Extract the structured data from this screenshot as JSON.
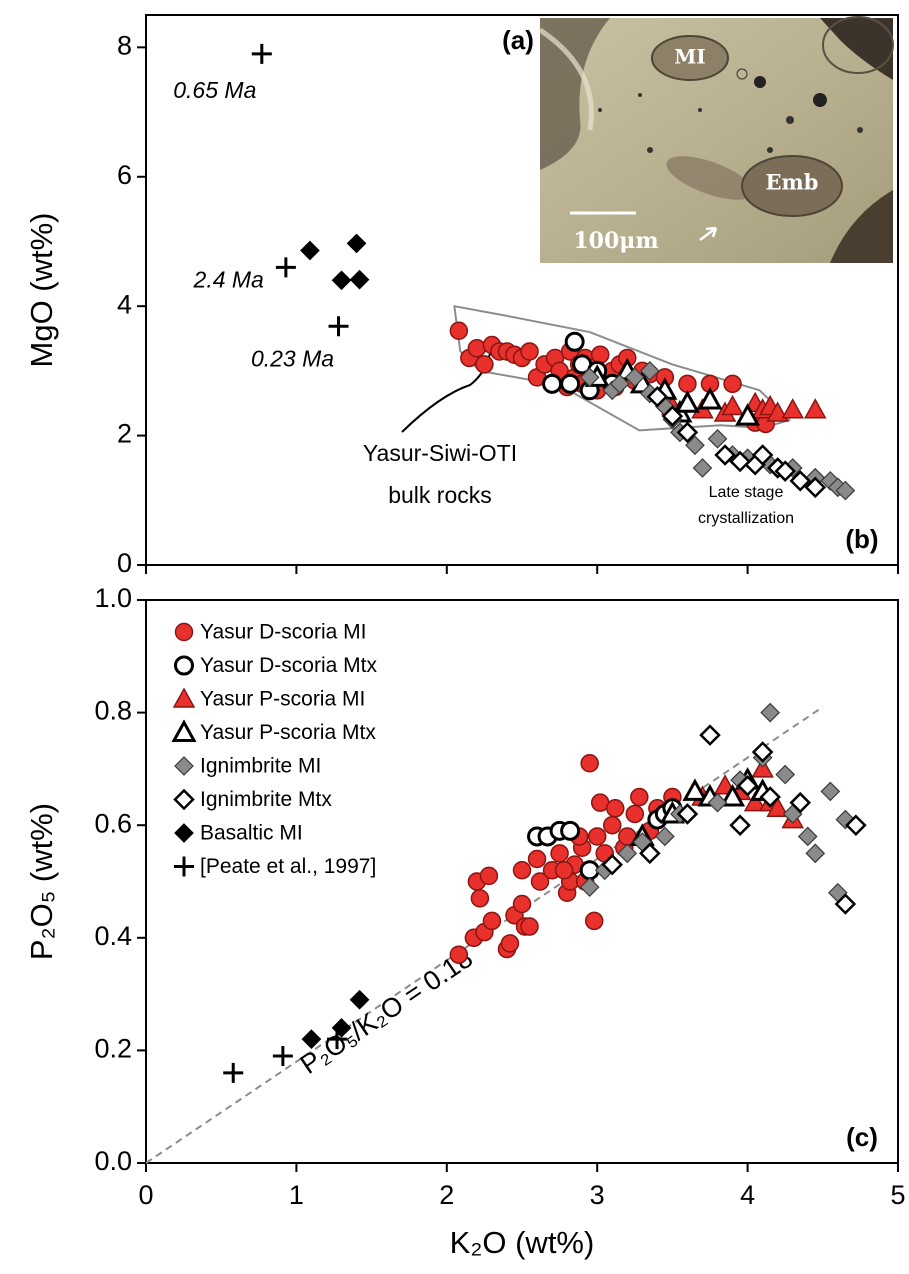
{
  "chart_data": [
    {
      "type": "scatter",
      "ylabel": "MgO (wt%)",
      "panel_label": "(b)",
      "xlim": [
        0,
        5
      ],
      "xticks": [
        0,
        1,
        2,
        3,
        4,
        5
      ],
      "ylim": [
        0,
        8.5
      ],
      "yticks": [
        0,
        2,
        4,
        6,
        8
      ],
      "inset": {
        "label": "(a)",
        "texts": [
          "MI",
          "Emb",
          "100μm"
        ]
      },
      "field": {
        "label": [
          "Yasur-Siwi-OTI",
          "bulk rocks"
        ],
        "color": "#8c8c8c",
        "x": [
          2.05,
          2.4,
          2.95,
          3.5,
          4.08,
          4.28,
          4.1,
          3.82,
          3.28,
          2.75,
          2.22,
          2.09
        ],
        "y": [
          4.0,
          3.85,
          3.6,
          3.1,
          2.7,
          2.24,
          2.12,
          2.16,
          2.08,
          2.78,
          3.0,
          3.3
        ]
      },
      "annotation": [
        "Late stage",
        "crystallization"
      ],
      "series": [
        {
          "marker": "circle",
          "color": "#e8302c",
          "edge": "#8a1512",
          "x": [
            2.08,
            2.15,
            2.2,
            2.25,
            2.3,
            2.35,
            2.4,
            2.45,
            2.5,
            2.55,
            2.6,
            2.65,
            2.7,
            2.72,
            2.75,
            2.8,
            2.82,
            2.85,
            2.88,
            2.9,
            2.92,
            2.95,
            2.98,
            3.0,
            3.02,
            3.05,
            3.1,
            3.12,
            3.15,
            3.2,
            3.25,
            3.3,
            3.35,
            3.45,
            3.6,
            3.75,
            3.9,
            4.05,
            4.12
          ],
          "y": [
            3.62,
            3.2,
            3.35,
            3.1,
            3.4,
            3.3,
            3.3,
            3.25,
            3.2,
            3.3,
            2.9,
            3.1,
            2.8,
            3.2,
            3.0,
            2.75,
            3.3,
            2.9,
            3.1,
            2.8,
            3.2,
            2.95,
            3.05,
            2.7,
            3.25,
            2.9,
            3.0,
            2.75,
            3.1,
            3.2,
            2.85,
            3.0,
            2.95,
            2.9,
            2.8,
            2.8,
            2.8,
            2.2,
            2.18
          ]
        },
        {
          "marker": "circle",
          "color": "#ffffff",
          "edge": "#000000",
          "x": [
            2.7,
            2.82,
            2.85,
            2.9,
            2.95,
            3.0,
            3.1
          ],
          "y": [
            2.8,
            2.8,
            3.45,
            3.1,
            2.7,
            3.0,
            2.8
          ]
        },
        {
          "marker": "triangle",
          "color": "#e8302c",
          "edge": "#8a1512",
          "x": [
            3.5,
            3.7,
            3.85,
            3.9,
            4.0,
            4.05,
            4.1,
            4.15,
            4.2,
            4.3,
            4.45
          ],
          "y": [
            2.45,
            2.4,
            2.35,
            2.45,
            2.3,
            2.5,
            2.4,
            2.45,
            2.35,
            2.4,
            2.4
          ]
        },
        {
          "marker": "triangle",
          "color": "#ffffff",
          "edge": "#000000",
          "x": [
            3.0,
            3.2,
            3.3,
            3.45,
            3.55,
            3.6,
            3.75,
            4.0
          ],
          "y": [
            2.9,
            3.0,
            2.8,
            2.7,
            2.35,
            2.5,
            2.55,
            2.3
          ]
        },
        {
          "marker": "diamond",
          "color": "#8a8a8a",
          "edge": "#3a3a3a",
          "x": [
            2.95,
            3.1,
            3.15,
            3.25,
            3.35,
            3.35,
            3.45,
            3.5,
            3.55,
            3.65,
            3.7,
            3.8,
            3.9,
            4.0,
            4.15,
            4.3,
            4.45,
            4.55,
            4.6,
            4.65
          ],
          "y": [
            2.9,
            2.7,
            2.8,
            2.9,
            3.0,
            2.65,
            2.45,
            2.25,
            2.05,
            1.85,
            1.5,
            1.95,
            1.7,
            1.65,
            1.55,
            1.5,
            1.35,
            1.3,
            1.2,
            1.15
          ]
        },
        {
          "marker": "diamond",
          "color": "#ffffff",
          "edge": "#000000",
          "x": [
            3.4,
            3.5,
            3.6,
            3.85,
            3.95,
            4.05,
            4.1,
            4.2,
            4.25,
            4.35,
            4.45
          ],
          "y": [
            2.6,
            2.3,
            2.05,
            1.7,
            1.6,
            1.55,
            1.7,
            1.5,
            1.45,
            1.3,
            1.2
          ]
        },
        {
          "marker": "diamond",
          "color": "#000000",
          "edge": "#000000",
          "x": [
            1.09,
            1.3,
            1.4,
            1.42
          ],
          "y": [
            4.86,
            4.4,
            4.97,
            4.41
          ]
        },
        {
          "marker": "plus",
          "color": "#000000",
          "x": [
            0.77,
            0.93,
            1.28
          ],
          "y": [
            7.9,
            4.6,
            3.69
          ],
          "point_labels": [
            "0.65 Ma",
            "2.4 Ma",
            "0.23 Ma"
          ]
        }
      ]
    },
    {
      "type": "scatter",
      "xlabel": "K₂O (wt%)",
      "ylabel": "P₂O₅ (wt%)",
      "panel_label": "(c)",
      "legend": "upper left",
      "xlim": [
        0,
        5
      ],
      "xticks": [
        0,
        1,
        2,
        3,
        4,
        5
      ],
      "ylim": [
        0,
        1
      ],
      "yticks": [
        {
          "value": 0,
          "label": "0.0"
        },
        0.2,
        0.4,
        0.6,
        0.8,
        {
          "value": 1,
          "label": "1.0"
        }
      ],
      "reference_line": {
        "slope": 0.18,
        "x": [
          0,
          4.5
        ],
        "label": "P₂O₅/K₂O = 0.18",
        "color": "#8c8c8c"
      },
      "series": [
        {
          "name": "Yasur D-scoria MI",
          "marker": "circle",
          "color": "#e8302c",
          "edge": "#8a1512",
          "x": [
            2.08,
            2.18,
            2.2,
            2.22,
            2.25,
            2.28,
            2.3,
            2.4,
            2.42,
            2.45,
            2.5,
            2.52,
            2.55,
            2.5,
            2.6,
            2.62,
            2.7,
            2.75,
            2.8,
            2.82,
            2.85,
            2.9,
            2.92,
            2.95,
            2.98,
            3.0,
            3.02,
            3.05,
            3.1,
            3.12,
            3.18,
            3.2,
            3.25,
            3.28,
            3.35,
            3.4,
            3.5,
            2.88,
            2.78
          ],
          "y": [
            0.37,
            0.4,
            0.5,
            0.47,
            0.41,
            0.51,
            0.43,
            0.38,
            0.39,
            0.44,
            0.46,
            0.42,
            0.42,
            0.52,
            0.54,
            0.5,
            0.52,
            0.55,
            0.48,
            0.5,
            0.53,
            0.56,
            0.5,
            0.71,
            0.43,
            0.58,
            0.64,
            0.55,
            0.6,
            0.63,
            0.56,
            0.58,
            0.62,
            0.65,
            0.59,
            0.63,
            0.65,
            0.58,
            0.52
          ]
        },
        {
          "name": "Yasur D-scoria Mtx",
          "marker": "circle",
          "color": "#ffffff",
          "edge": "#000000",
          "x": [
            2.6,
            2.67,
            2.75,
            2.82,
            2.95,
            3.4,
            3.45,
            3.5
          ],
          "y": [
            0.58,
            0.58,
            0.59,
            0.59,
            0.52,
            0.61,
            0.62,
            0.63
          ]
        },
        {
          "name": "Yasur P-scoria MI",
          "marker": "triangle",
          "color": "#e8302c",
          "edge": "#8a1512",
          "x": [
            3.7,
            3.85,
            3.95,
            4.05,
            4.1,
            4.15,
            4.2,
            4.3
          ],
          "y": [
            0.65,
            0.67,
            0.66,
            0.64,
            0.7,
            0.64,
            0.63,
            0.61
          ]
        },
        {
          "name": "Yasur P-scoria Mtx",
          "marker": "triangle",
          "color": "#ffffff",
          "edge": "#000000",
          "x": [
            3.3,
            3.5,
            3.65,
            3.75,
            3.9,
            4.0,
            4.1
          ],
          "y": [
            0.58,
            0.62,
            0.66,
            0.65,
            0.65,
            0.68,
            0.66
          ]
        },
        {
          "name": "Ignimbrite MI",
          "marker": "diamond",
          "color": "#8a8a8a",
          "edge": "#3a3a3a",
          "x": [
            2.95,
            3.05,
            3.2,
            3.3,
            3.45,
            3.55,
            3.8,
            3.95,
            4.1,
            4.15,
            4.25,
            4.3,
            4.4,
            4.45,
            4.55,
            4.6,
            4.65
          ],
          "y": [
            0.49,
            0.52,
            0.55,
            0.57,
            0.58,
            0.62,
            0.64,
            0.68,
            0.72,
            0.8,
            0.69,
            0.62,
            0.58,
            0.55,
            0.66,
            0.48,
            0.61
          ]
        },
        {
          "name": "Ignimbrite Mtx",
          "marker": "diamond",
          "color": "#ffffff",
          "edge": "#000000",
          "x": [
            3.1,
            3.35,
            3.6,
            3.75,
            3.95,
            4.0,
            4.1,
            4.15,
            4.35,
            4.65,
            4.72
          ],
          "y": [
            0.53,
            0.55,
            0.62,
            0.76,
            0.6,
            0.67,
            0.73,
            0.65,
            0.64,
            0.46,
            0.6
          ]
        },
        {
          "name": "Basaltic MI",
          "marker": "diamond",
          "color": "#000000",
          "edge": "#000000",
          "x": [
            1.1,
            1.3,
            1.42
          ],
          "y": [
            0.22,
            0.24,
            0.29
          ]
        },
        {
          "name": "[Peate et al., 1997]",
          "marker": "plus",
          "color": "#000000",
          "x": [
            0.58,
            0.91,
            1.27
          ],
          "y": [
            0.16,
            0.19,
            0.22
          ]
        }
      ]
    }
  ]
}
